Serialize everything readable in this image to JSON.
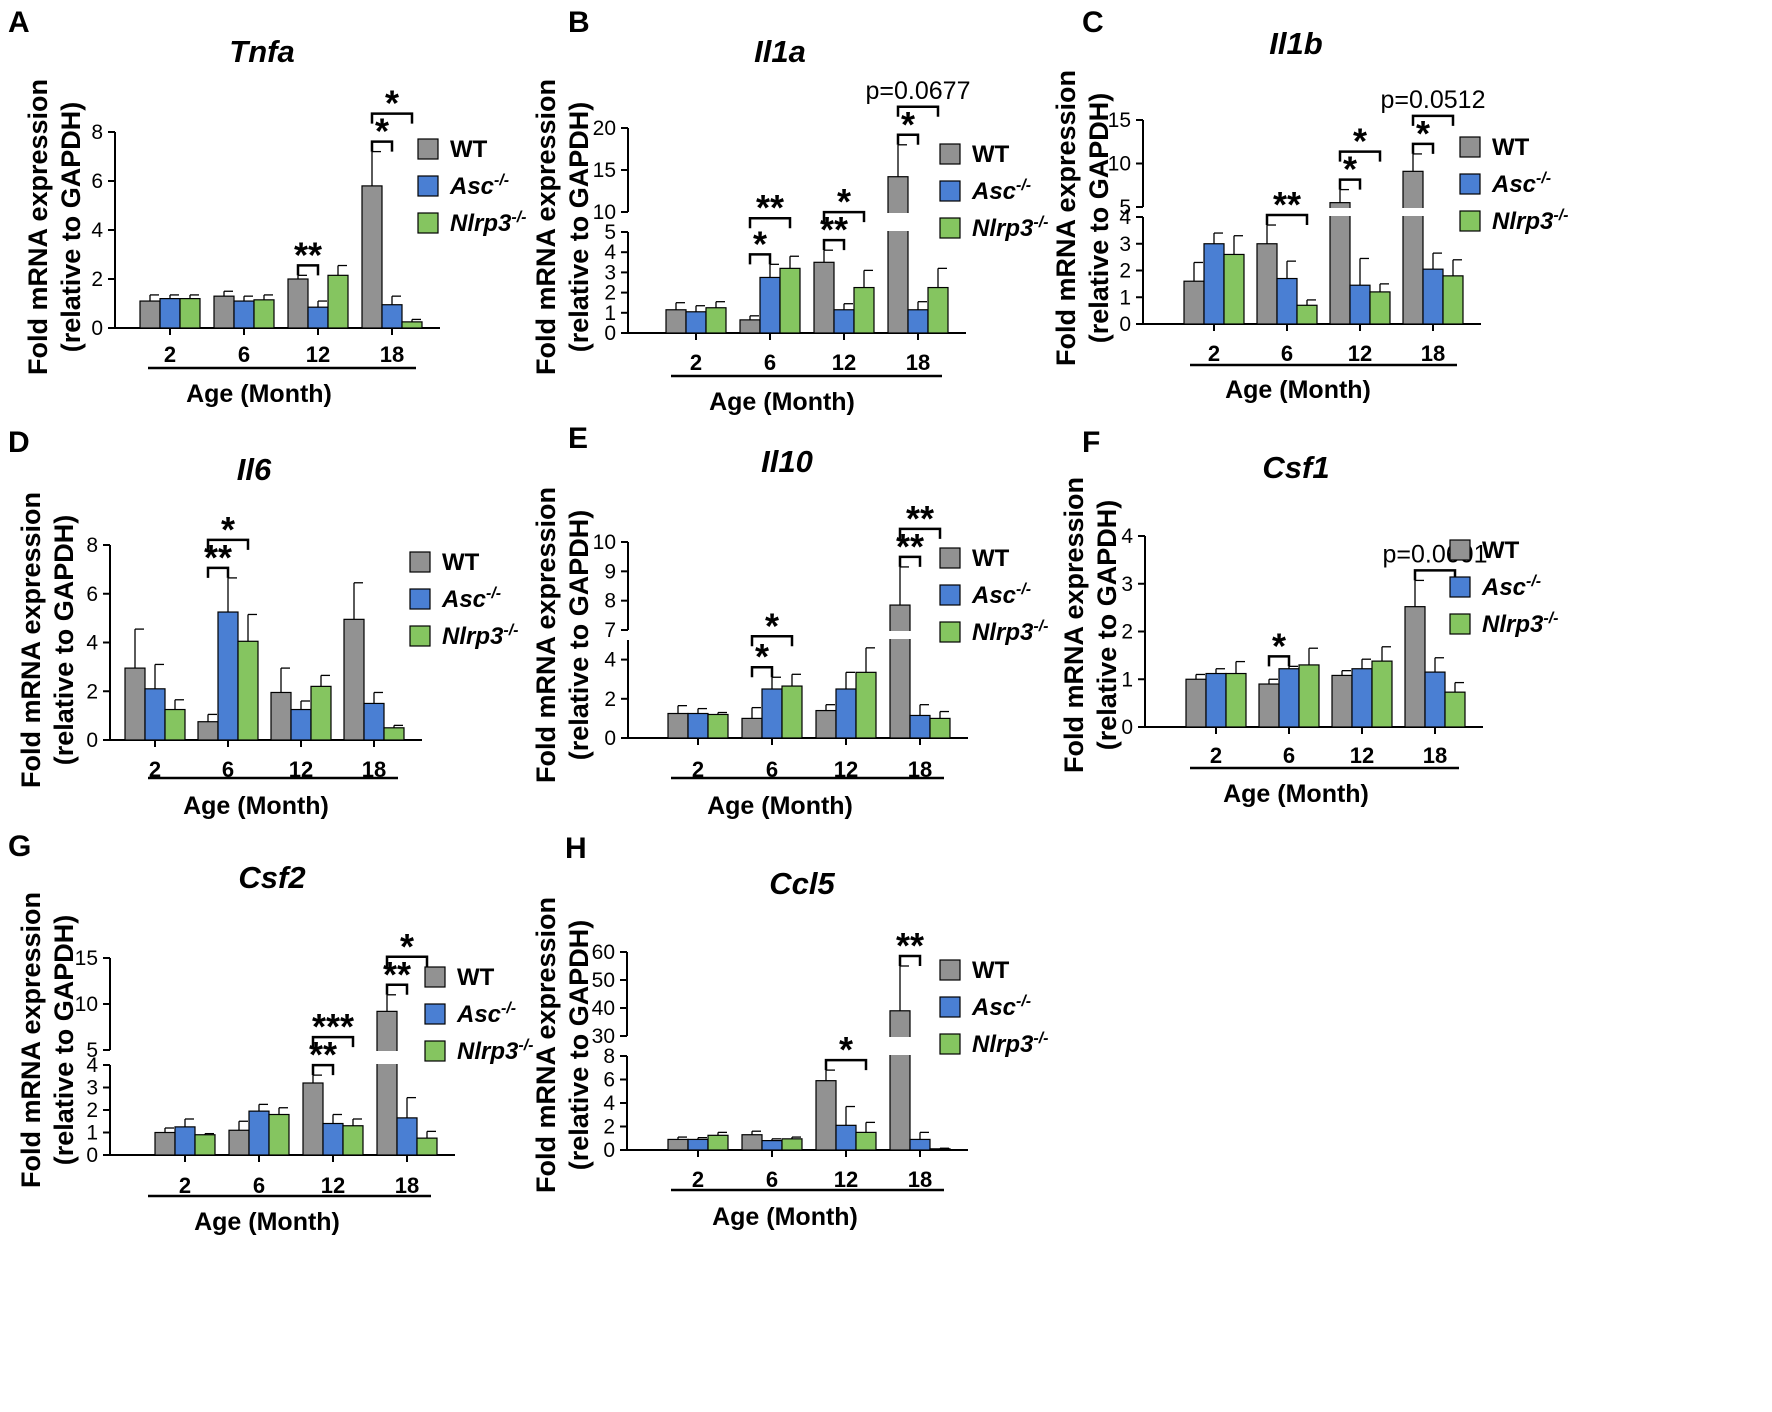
{
  "chart_data": [
    {
      "type": "bar",
      "panel": "A",
      "title": "Tnfa",
      "categories": [
        "2",
        "6",
        "12",
        "18"
      ],
      "xlabel": "Age (Month)",
      "ylabel": [
        "Fold mRNA expression",
        "(relative to GAPDH)"
      ],
      "ylim": [
        0,
        8
      ],
      "yticks": [
        "0",
        "2",
        "4",
        "6",
        "8"
      ],
      "series": [
        {
          "name": "WT",
          "values": [
            1.1,
            1.3,
            2.0,
            5.8
          ],
          "errors": [
            0.25,
            0.2,
            0.15,
            1.4
          ]
        },
        {
          "name": "Asc",
          "values": [
            1.2,
            1.1,
            0.85,
            0.95
          ],
          "errors": [
            0.15,
            0.2,
            0.25,
            0.35
          ]
        },
        {
          "name": "Nlrp3",
          "values": [
            1.2,
            1.15,
            2.15,
            0.25
          ],
          "errors": [
            0.15,
            0.2,
            0.4,
            0.1
          ]
        }
      ],
      "significance": [
        {
          "label": "**",
          "group": 2,
          "from": 0,
          "to": 1,
          "level": 1
        },
        {
          "label": "*",
          "group": 3,
          "from": 0,
          "to": 1,
          "level": 1
        },
        {
          "label": "*",
          "group": 3,
          "from": 0,
          "to": 2,
          "level": 2
        }
      ]
    },
    {
      "type": "bar",
      "panel": "B",
      "title": "Il1a",
      "categories": [
        "2",
        "6",
        "12",
        "18"
      ],
      "xlabel": "Age (Month)",
      "ylabel": [
        "Fold mRNA expression",
        "(relative to GAPDH)"
      ],
      "axis_break": {
        "lower": [
          0,
          5
        ],
        "upper": [
          10,
          20
        ]
      },
      "yticks_lower": [
        "0",
        "1",
        "2",
        "3",
        "4",
        "5"
      ],
      "yticks_upper": [
        "10",
        "15",
        "20"
      ],
      "series": [
        {
          "name": "WT",
          "values": [
            1.15,
            0.65,
            3.5,
            14.2
          ],
          "errors": [
            0.35,
            0.2,
            0.6,
            3.8
          ]
        },
        {
          "name": "Asc",
          "values": [
            1.05,
            2.75,
            1.15,
            1.15
          ],
          "errors": [
            0.3,
            0.65,
            0.3,
            0.4
          ]
        },
        {
          "name": "Nlrp3",
          "values": [
            1.25,
            3.2,
            2.25,
            2.25
          ],
          "errors": [
            0.3,
            0.6,
            0.85,
            0.95
          ]
        }
      ],
      "significance": [
        {
          "label": "*",
          "group": 1,
          "from": 0,
          "to": 1,
          "level": 1
        },
        {
          "label": "**",
          "group": 1,
          "from": 0,
          "to": 2,
          "level": 2
        },
        {
          "label": "**",
          "group": 2,
          "from": 0,
          "to": 1,
          "level": 1
        },
        {
          "label": "*",
          "group": 2,
          "from": 0,
          "to": 2,
          "level": 2
        },
        {
          "label": "*",
          "group": 3,
          "from": 0,
          "to": 1,
          "level": 1
        },
        {
          "label": "p=0.0677",
          "group": 3,
          "from": 0,
          "to": 2,
          "level": 2
        }
      ]
    },
    {
      "type": "bar",
      "panel": "C",
      "title": "Il1b",
      "categories": [
        "2",
        "6",
        "12",
        "18"
      ],
      "xlabel": "Age (Month)",
      "ylabel": [
        "Fold mRNA expression",
        "(relative to GAPDH)"
      ],
      "axis_break": {
        "lower": [
          0,
          4
        ],
        "upper": [
          5,
          15
        ]
      },
      "yticks_lower": [
        "0",
        "1",
        "2",
        "3",
        "4"
      ],
      "yticks_upper": [
        "5",
        "10",
        "15"
      ],
      "series": [
        {
          "name": "WT",
          "values": [
            1.6,
            3.0,
            5.5,
            9.1
          ],
          "errors": [
            0.7,
            0.7,
            1.5,
            2.0
          ]
        },
        {
          "name": "Asc",
          "values": [
            3.0,
            1.7,
            1.45,
            2.05
          ],
          "errors": [
            0.4,
            0.65,
            1.0,
            0.6
          ]
        },
        {
          "name": "Nlrp3",
          "values": [
            2.6,
            0.7,
            1.2,
            1.8
          ],
          "errors": [
            0.7,
            0.2,
            0.3,
            0.6
          ]
        }
      ],
      "significance": [
        {
          "label": "**",
          "group": 1,
          "from": 0,
          "to": 2,
          "level": 1
        },
        {
          "label": "*",
          "group": 2,
          "from": 0,
          "to": 1,
          "level": 1
        },
        {
          "label": "*",
          "group": 2,
          "from": 0,
          "to": 2,
          "level": 2
        },
        {
          "label": "*",
          "group": 3,
          "from": 0,
          "to": 1,
          "level": 1
        },
        {
          "label": "p=0.0512",
          "group": 3,
          "from": 0,
          "to": 2,
          "level": 2
        }
      ]
    },
    {
      "type": "bar",
      "panel": "D",
      "title": "Il6",
      "categories": [
        "2",
        "6",
        "12",
        "18"
      ],
      "xlabel": "Age (Month)",
      "ylabel": [
        "Fold mRNA expression",
        "(relative to GAPDH)"
      ],
      "ylim": [
        0,
        8
      ],
      "yticks": [
        "0",
        "2",
        "4",
        "6",
        "8"
      ],
      "series": [
        {
          "name": "WT",
          "values": [
            2.95,
            0.75,
            1.95,
            4.95
          ],
          "errors": [
            1.6,
            0.3,
            1.0,
            1.5
          ]
        },
        {
          "name": "Asc",
          "values": [
            2.1,
            5.25,
            1.25,
            1.5
          ],
          "errors": [
            1.0,
            1.4,
            0.35,
            0.45
          ]
        },
        {
          "name": "Nlrp3",
          "values": [
            1.25,
            4.05,
            2.2,
            0.5
          ],
          "errors": [
            0.4,
            1.1,
            0.45,
            0.1
          ]
        }
      ],
      "significance": [
        {
          "label": "**",
          "group": 1,
          "from": 0,
          "to": 1,
          "level": 1
        },
        {
          "label": "*",
          "group": 1,
          "from": 0,
          "to": 2,
          "level": 2
        }
      ]
    },
    {
      "type": "bar",
      "panel": "E",
      "title": "Il10",
      "categories": [
        "2",
        "6",
        "12",
        "18"
      ],
      "xlabel": "Age (Month)",
      "ylabel": [
        "Fold mRNA expression",
        "(relative to GAPDH)"
      ],
      "axis_break": {
        "lower": [
          0,
          5
        ],
        "upper": [
          7,
          10
        ]
      },
      "yticks_lower": [
        "0",
        "2",
        "4"
      ],
      "yticks_upper": [
        "7",
        "8",
        "9",
        "10"
      ],
      "series": [
        {
          "name": "WT",
          "values": [
            1.25,
            1.0,
            1.4,
            7.85
          ],
          "errors": [
            0.4,
            0.55,
            0.3,
            1.3
          ]
        },
        {
          "name": "Asc",
          "values": [
            1.25,
            2.5,
            2.5,
            1.15
          ],
          "errors": [
            0.25,
            0.6,
            0.85,
            0.55
          ]
        },
        {
          "name": "Nlrp3",
          "values": [
            1.2,
            2.65,
            3.35,
            1.0
          ],
          "errors": [
            0.1,
            0.6,
            1.25,
            0.35
          ]
        }
      ],
      "significance": [
        {
          "label": "*",
          "group": 1,
          "from": 0,
          "to": 1,
          "level": 1
        },
        {
          "label": "*",
          "group": 1,
          "from": 0,
          "to": 2,
          "level": 2
        },
        {
          "label": "**",
          "group": 3,
          "from": 0,
          "to": 1,
          "level": 1
        },
        {
          "label": "**",
          "group": 3,
          "from": 0,
          "to": 2,
          "level": 2
        }
      ]
    },
    {
      "type": "bar",
      "panel": "F",
      "title": "Csf1",
      "categories": [
        "2",
        "6",
        "12",
        "18"
      ],
      "xlabel": "Age (Month)",
      "ylabel": [
        "Fold mRNA expression",
        "(relative to GAPDH)"
      ],
      "ylim": [
        0,
        4
      ],
      "yticks": [
        "0",
        "1",
        "2",
        "3",
        "4"
      ],
      "series": [
        {
          "name": "WT",
          "values": [
            1.0,
            0.9,
            1.08,
            2.52
          ],
          "errors": [
            0.1,
            0.1,
            0.1,
            0.55
          ]
        },
        {
          "name": "Asc",
          "values": [
            1.12,
            1.22,
            1.22,
            1.15
          ],
          "errors": [
            0.1,
            0.05,
            0.2,
            0.3
          ]
        },
        {
          "name": "Nlrp3",
          "values": [
            1.12,
            1.3,
            1.38,
            0.73
          ],
          "errors": [
            0.25,
            0.35,
            0.3,
            0.2
          ]
        }
      ],
      "significance": [
        {
          "label": "*",
          "group": 1,
          "from": 0,
          "to": 1,
          "level": 1
        },
        {
          "label": "p=0.0601",
          "group": 3,
          "from": 0,
          "to": 2,
          "level": 1
        }
      ]
    },
    {
      "type": "bar",
      "panel": "G",
      "title": "Csf2",
      "categories": [
        "2",
        "6",
        "12",
        "18"
      ],
      "xlabel": "Age (Month)",
      "ylabel": [
        "Fold mRNA expression",
        "(relative to GAPDH)"
      ],
      "axis_break": {
        "lower": [
          0,
          4
        ],
        "upper": [
          5,
          15
        ]
      },
      "yticks_lower": [
        "0",
        "1",
        "2",
        "3",
        "4"
      ],
      "yticks_upper": [
        "5",
        "10",
        "15"
      ],
      "series": [
        {
          "name": "WT",
          "values": [
            1.0,
            1.1,
            3.2,
            9.2
          ],
          "errors": [
            0.2,
            0.4,
            0.35,
            1.8
          ]
        },
        {
          "name": "Asc",
          "values": [
            1.25,
            1.95,
            1.4,
            1.65
          ],
          "errors": [
            0.35,
            0.3,
            0.4,
            0.9
          ]
        },
        {
          "name": "Nlrp3",
          "values": [
            0.9,
            1.8,
            1.3,
            0.75
          ],
          "errors": [
            0.05,
            0.3,
            0.3,
            0.3
          ]
        }
      ],
      "significance": [
        {
          "label": "**",
          "group": 2,
          "from": 0,
          "to": 1,
          "level": 1
        },
        {
          "label": "***",
          "group": 2,
          "from": 0,
          "to": 2,
          "level": 2
        },
        {
          "label": "**",
          "group": 3,
          "from": 0,
          "to": 1,
          "level": 1
        },
        {
          "label": "*",
          "group": 3,
          "from": 0,
          "to": 2,
          "level": 2
        }
      ]
    },
    {
      "type": "bar",
      "panel": "H",
      "title": "Ccl5",
      "categories": [
        "2",
        "6",
        "12",
        "18"
      ],
      "xlabel": "Age (Month)",
      "ylabel": [
        "Fold mRNA expression",
        "(relative to GAPDH)"
      ],
      "axis_break": {
        "lower": [
          0,
          8
        ],
        "upper": [
          30,
          60
        ]
      },
      "yticks_lower": [
        "0",
        "2",
        "4",
        "6",
        "8"
      ],
      "yticks_upper": [
        "30",
        "40",
        "50",
        "60"
      ],
      "series": [
        {
          "name": "WT",
          "values": [
            0.9,
            1.3,
            5.9,
            39
          ],
          "errors": [
            0.2,
            0.3,
            0.9,
            16
          ]
        },
        {
          "name": "Asc",
          "values": [
            0.9,
            0.8,
            2.1,
            0.9
          ],
          "errors": [
            0.15,
            0.15,
            1.6,
            0.6
          ]
        },
        {
          "name": "Nlrp3",
          "values": [
            1.25,
            0.95,
            1.5,
            0.1
          ],
          "errors": [
            0.25,
            0.15,
            0.85,
            0.05
          ]
        }
      ],
      "significance": [
        {
          "label": "*",
          "group": 2,
          "from": 0,
          "to": 2,
          "level": 1
        },
        {
          "label": "**",
          "group": 3,
          "from": 0,
          "to": 1,
          "level": 1
        }
      ]
    }
  ],
  "legend": {
    "entries": [
      {
        "name": "WT",
        "label": "WT",
        "sup": "",
        "italic": false,
        "color": "#929292"
      },
      {
        "name": "Asc",
        "label": "Asc",
        "sup": "-/-",
        "italic": true,
        "color": "#4a7fd3"
      },
      {
        "name": "Nlrp3",
        "label": "Nlrp3",
        "sup": "-/-",
        "italic": true,
        "color": "#85c560"
      }
    ]
  }
}
